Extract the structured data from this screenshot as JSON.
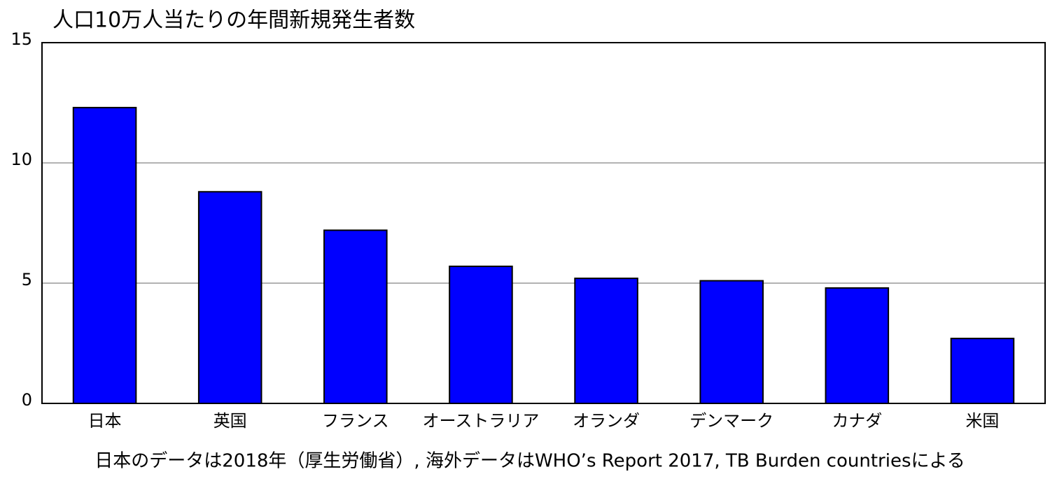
{
  "chart_data": {
    "type": "bar",
    "title": "人口10万人当たりの年間新規発生者数",
    "categories": [
      "日本",
      "英国",
      "フランス",
      "オーストラリア",
      "オランダ",
      "デンマーク",
      "カナダ",
      "米国"
    ],
    "values": [
      12.3,
      8.8,
      7.2,
      5.7,
      5.2,
      5.1,
      4.8,
      2.7
    ],
    "color": "#0000ff",
    "ylim": [
      0,
      15
    ],
    "yticks": [
      0,
      5,
      10,
      15
    ],
    "grid": true,
    "note": "日本のデータは2018年（厚生労働省）, 海外データはWHO’s Report 2017, TB Burden countriesによる"
  }
}
